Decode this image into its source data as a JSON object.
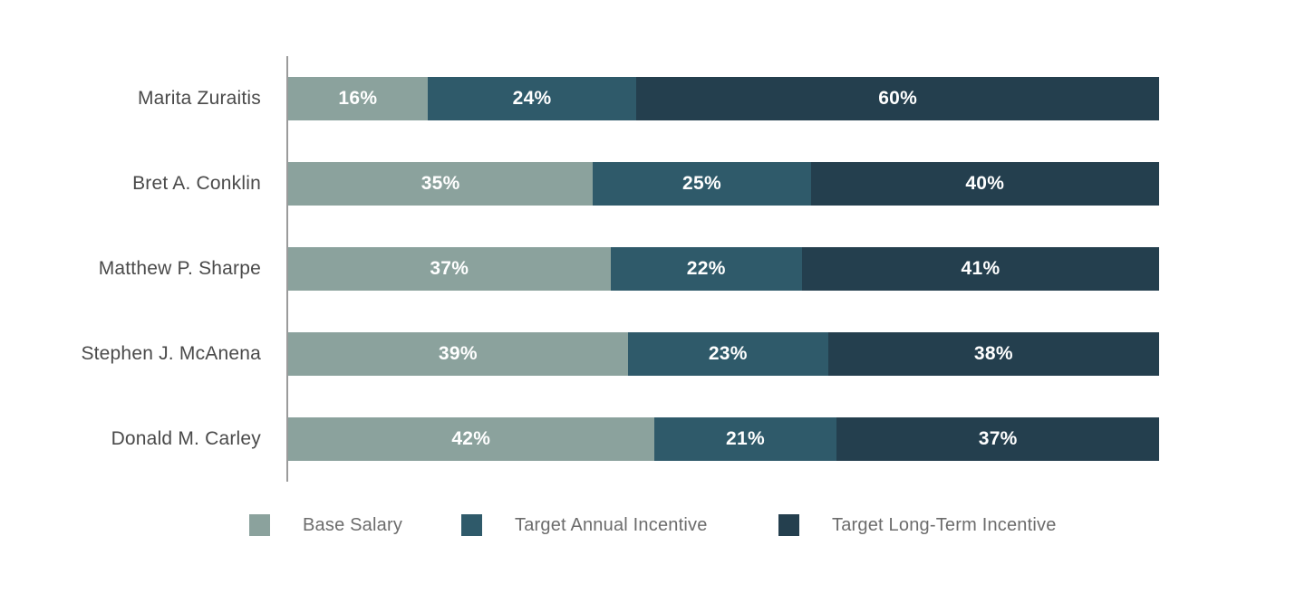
{
  "chart_data": {
    "type": "bar",
    "orientation": "horizontal",
    "stacked": true,
    "title": "",
    "xlabel": "",
    "ylabel": "",
    "xlim": [
      0,
      100
    ],
    "grid": false,
    "legend_position": "bottom",
    "value_label_format": "{value}%",
    "categories": [
      "Marita Zuraitis",
      "Bret A. Conklin",
      "Matthew P. Sharpe",
      "Stephen J. McAnena",
      "Donald M. Carley"
    ],
    "series": [
      {
        "name": "Base Salary",
        "color": "#8BA29D",
        "values": [
          16,
          35,
          37,
          39,
          42
        ]
      },
      {
        "name": "Target Annual Incentive",
        "color": "#2F5A6A",
        "values": [
          24,
          25,
          22,
          23,
          21
        ]
      },
      {
        "name": "Target Long-Term Incentive",
        "color": "#243F4E",
        "values": [
          60,
          40,
          41,
          38,
          37
        ]
      }
    ],
    "axis_line_color": "#9b9b9b",
    "category_label_color": "#4a4a4a",
    "legend_label_color": "#6c6c6c",
    "value_label_color": "#ffffff",
    "background_color": "#ffffff"
  }
}
